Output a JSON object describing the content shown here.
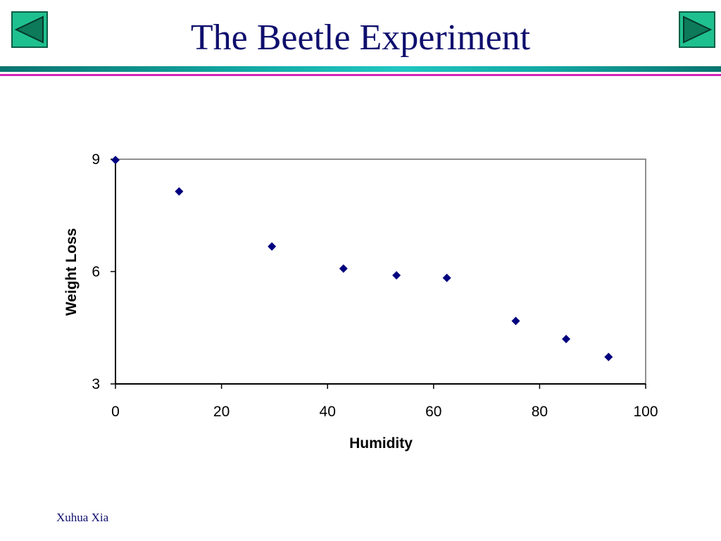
{
  "slide": {
    "title": "The Beetle Experiment",
    "footer": "Xuhua Xia"
  },
  "colors": {
    "title": "#0f0f6e",
    "nav_button_fill": "#1fc08f",
    "marker": "#00007f",
    "rule_teal": "#12a9a5",
    "rule_pink": "#d424b8"
  },
  "nav": {
    "prev_icon": "triangle-left-icon",
    "next_icon": "triangle-right-icon"
  },
  "chart_data": {
    "type": "scatter",
    "xlabel": "Humidity",
    "ylabel": "Weight Loss",
    "xlim": [
      0,
      100
    ],
    "ylim": [
      3,
      9
    ],
    "xticks": [
      0,
      20,
      40,
      60,
      80,
      100
    ],
    "yticks": [
      3,
      6,
      9
    ],
    "grid": false,
    "marker": "diamond",
    "points": [
      {
        "x": 0,
        "y": 8.98
      },
      {
        "x": 12,
        "y": 8.14
      },
      {
        "x": 29.5,
        "y": 6.67
      },
      {
        "x": 43,
        "y": 6.08
      },
      {
        "x": 53,
        "y": 5.9
      },
      {
        "x": 62.5,
        "y": 5.83
      },
      {
        "x": 75.5,
        "y": 4.68
      },
      {
        "x": 85,
        "y": 4.2
      },
      {
        "x": 93,
        "y": 3.72
      }
    ]
  }
}
